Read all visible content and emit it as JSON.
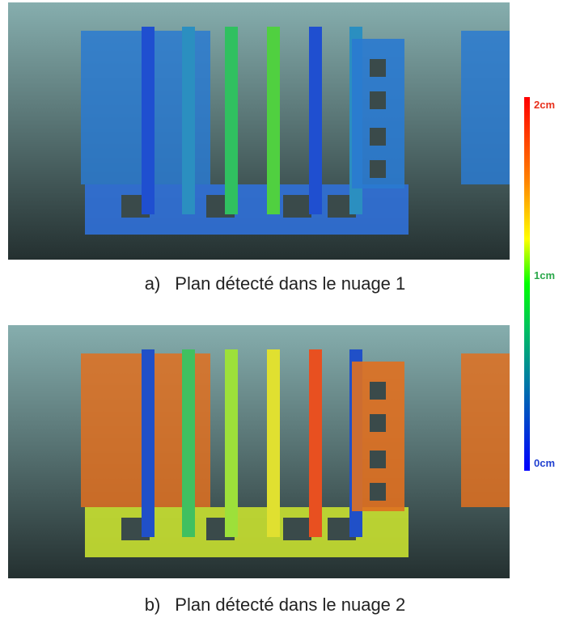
{
  "figures": [
    {
      "label": "a)",
      "caption": "Plan détecté dans le nuage 1"
    },
    {
      "label": "b)",
      "caption": "Plan détecté dans le nuage 2"
    }
  ],
  "color_scale": {
    "labels": [
      "2cm",
      "1cm",
      "0cm"
    ]
  }
}
